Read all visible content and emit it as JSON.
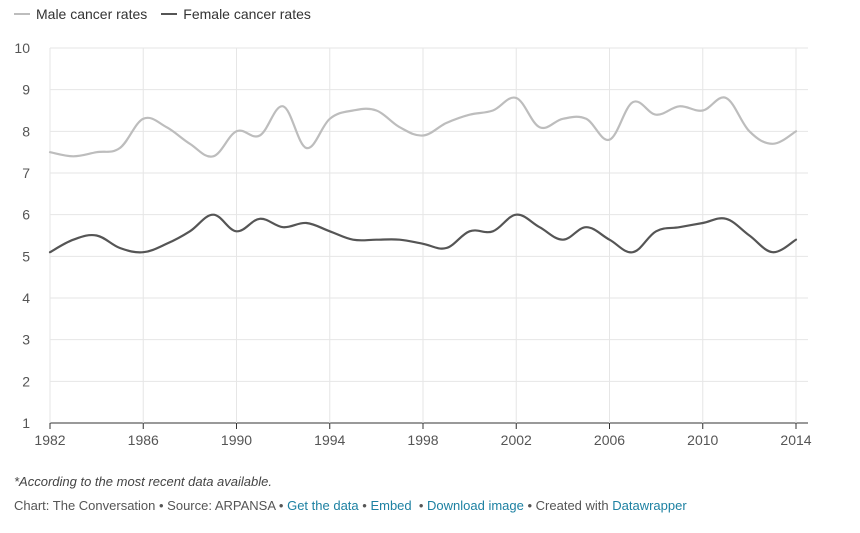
{
  "legend": {
    "male": "Male cancer rates",
    "female": "Female cancer rates"
  },
  "colors": {
    "male": "#bdbdbd",
    "female": "#555555",
    "grid": "#e6e6e6",
    "axis": "#333333",
    "link": "#1d81a2"
  },
  "chart_data": {
    "type": "line",
    "x": [
      1982,
      1983,
      1984,
      1985,
      1986,
      1987,
      1988,
      1989,
      1990,
      1991,
      1992,
      1993,
      1994,
      1995,
      1996,
      1997,
      1998,
      1999,
      2000,
      2001,
      2002,
      2003,
      2004,
      2005,
      2006,
      2007,
      2008,
      2009,
      2010,
      2011,
      2012,
      2013,
      2014
    ],
    "series": [
      {
        "name": "Male cancer rates",
        "values": [
          7.5,
          7.4,
          7.5,
          7.6,
          8.3,
          8.1,
          7.7,
          7.4,
          8.0,
          7.9,
          8.6,
          7.6,
          8.3,
          8.5,
          8.5,
          8.1,
          7.9,
          8.2,
          8.4,
          8.5,
          8.8,
          8.1,
          8.3,
          8.3,
          7.8,
          8.7,
          8.4,
          8.6,
          8.5,
          8.8,
          8.0,
          7.7,
          8.0
        ]
      },
      {
        "name": "Female cancer rates",
        "values": [
          5.1,
          5.4,
          5.5,
          5.2,
          5.1,
          5.3,
          5.6,
          6.0,
          5.6,
          5.9,
          5.7,
          5.8,
          5.6,
          5.4,
          5.4,
          5.4,
          5.3,
          5.2,
          5.6,
          5.6,
          6.0,
          5.7,
          5.4,
          5.7,
          5.4,
          5.1,
          5.6,
          5.7,
          5.8,
          5.9,
          5.5,
          5.1,
          5.4
        ]
      }
    ],
    "xticks": [
      1982,
      1986,
      1990,
      1994,
      1998,
      2002,
      2006,
      2010,
      2014
    ],
    "yticks": [
      1,
      2,
      3,
      4,
      5,
      6,
      7,
      8,
      9,
      10
    ],
    "xlim": [
      1982,
      2014
    ],
    "ylim": [
      1,
      10
    ],
    "grid": true,
    "legend_position": "top-left"
  },
  "note": "*According to the most recent data available.",
  "footer": {
    "prefix": "Chart: The Conversation • Source: ARPANSA • ",
    "get_data": "Get the data",
    "sep1": " • ",
    "embed": "Embed",
    "sep2": "  • ",
    "download": "Download image",
    "created": " • Created with ",
    "datawrapper": "Datawrapper"
  }
}
